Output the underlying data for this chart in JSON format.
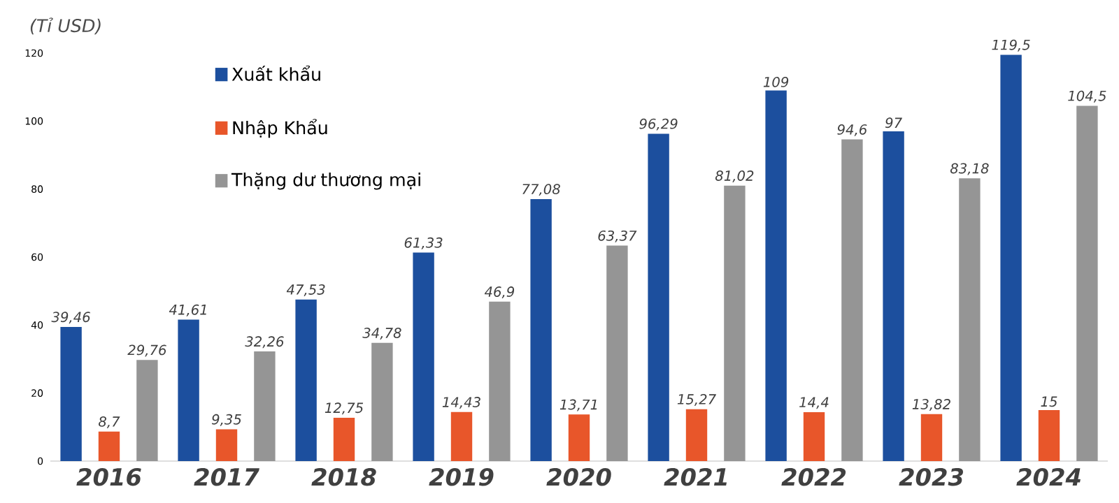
{
  "chart_data": {
    "type": "bar",
    "title": "(Tỉ USD)",
    "categories": [
      "2016",
      "2017",
      "2018",
      "2019",
      "2020",
      "2021",
      "2022",
      "2023",
      "2024"
    ],
    "series": [
      {
        "name": "Xuất khẩu",
        "color": "#1c4f9e",
        "values": [
          39.46,
          41.61,
          47.53,
          61.33,
          77.08,
          96.29,
          109,
          97,
          119.5
        ],
        "value_labels": [
          "39,46",
          "41,61",
          "47,53",
          "61,33",
          "77,08",
          "96,29",
          "109",
          "97",
          "119,5"
        ]
      },
      {
        "name": "Nhập Khẩu",
        "color": "#e8562a",
        "values": [
          8.7,
          9.35,
          12.75,
          14.43,
          13.71,
          15.27,
          14.4,
          13.82,
          15
        ],
        "value_labels": [
          "8,7",
          "9,35",
          "12,75",
          "14,43",
          "13,71",
          "15,27",
          "14,4",
          "13,82",
          "15"
        ]
      },
      {
        "name": "Thặng dư thương mại",
        "color": "#959595",
        "values": [
          29.76,
          32.26,
          34.78,
          46.9,
          63.37,
          81.02,
          94.6,
          83.18,
          104.5
        ],
        "value_labels": [
          "29,76",
          "32,26",
          "34,78",
          "46,9",
          "63,37",
          "81,02",
          "94,6",
          "83,18",
          "104,5"
        ]
      }
    ],
    "ylim": [
      0,
      120
    ],
    "yticks": [
      0,
      20,
      40,
      60,
      80,
      100,
      120
    ],
    "grid": false,
    "legend": "top left"
  }
}
